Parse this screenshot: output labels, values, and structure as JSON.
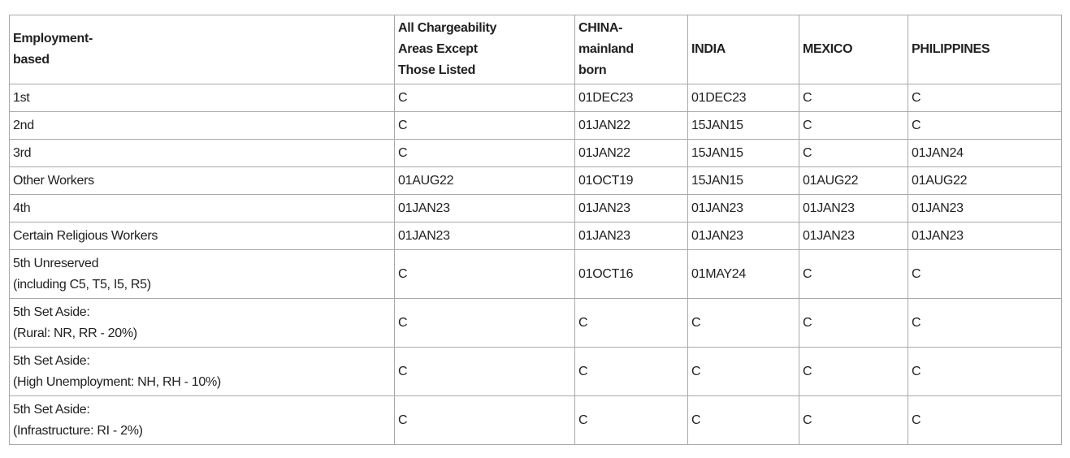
{
  "headers": [
    "Employment-\nbased",
    "All Chargeability\nAreas Except\nThose Listed",
    "CHINA-\nmainland\nborn",
    "INDIA",
    "MEXICO",
    "PHILIPPINES"
  ],
  "rows": [
    {
      "category": "1st",
      "values": [
        "C",
        "01DEC23",
        "01DEC23",
        "C",
        "C"
      ]
    },
    {
      "category": "2nd",
      "values": [
        "C",
        "01JAN22",
        "15JAN15",
        "C",
        "C"
      ]
    },
    {
      "category": "3rd",
      "values": [
        "C",
        "01JAN22",
        "15JAN15",
        "C",
        "01JAN24"
      ]
    },
    {
      "category": "Other Workers",
      "values": [
        "01AUG22",
        "01OCT19",
        "15JAN15",
        "01AUG22",
        "01AUG22"
      ]
    },
    {
      "category": "4th",
      "values": [
        "01JAN23",
        "01JAN23",
        "01JAN23",
        "01JAN23",
        "01JAN23"
      ]
    },
    {
      "category": "Certain Religious Workers",
      "values": [
        "01JAN23",
        "01JAN23",
        "01JAN23",
        "01JAN23",
        "01JAN23"
      ]
    },
    {
      "category": "5th Unreserved\n(including C5, T5, I5, R5)",
      "values": [
        "C",
        "01OCT16",
        "01MAY24",
        "C",
        "C"
      ]
    },
    {
      "category": "5th Set Aside:\n(Rural: NR, RR - 20%)",
      "values": [
        "C",
        "C",
        "C",
        "C",
        "C"
      ]
    },
    {
      "category": "5th Set Aside:\n(High Unemployment: NH, RH - 10%)",
      "values": [
        "C",
        "C",
        "C",
        "C",
        "C"
      ]
    },
    {
      "category": "5th Set Aside:\n(Infrastructure: RI - 2%)",
      "values": [
        "C",
        "C",
        "C",
        "C",
        "C"
      ]
    }
  ]
}
